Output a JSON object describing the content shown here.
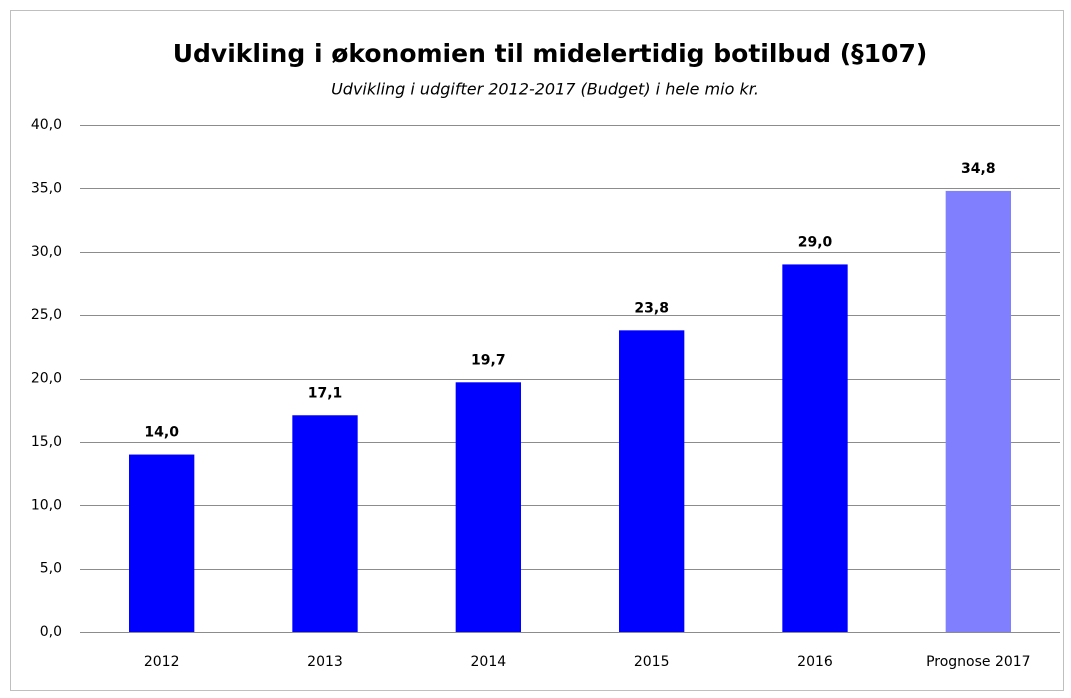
{
  "chart_data": {
    "type": "bar",
    "title": "Udvikling i økonomien til midelertidig botilbud (§107)",
    "subtitle": "Udvikling i udgifter 2012-2017 (Budget) i hele mio kr.",
    "categories": [
      "2012",
      "2013",
      "2014",
      "2015",
      "2016",
      "Prognose 2017"
    ],
    "values": [
      14.0,
      17.1,
      19.7,
      23.8,
      29.0,
      34.8
    ],
    "value_labels": [
      "14,0",
      "17,1",
      "19,7",
      "23,8",
      "29,0",
      "34,8"
    ],
    "colors": [
      "#0000ff",
      "#0000ff",
      "#0000ff",
      "#0000ff",
      "#0000ff",
      "#8080ff"
    ],
    "ylim": [
      0,
      40
    ],
    "yticks": [
      {
        "value": 0,
        "label": "0,0"
      },
      {
        "value": 5,
        "label": "5,0"
      },
      {
        "value": 10,
        "label": "10,0"
      },
      {
        "value": 15,
        "label": "15,0"
      },
      {
        "value": 20,
        "label": "20,0"
      },
      {
        "value": 25,
        "label": "25,0"
      },
      {
        "value": 30,
        "label": "30,0"
      },
      {
        "value": 35,
        "label": "35,0"
      },
      {
        "value": 40,
        "label": "40,0"
      }
    ],
    "grid": true
  }
}
